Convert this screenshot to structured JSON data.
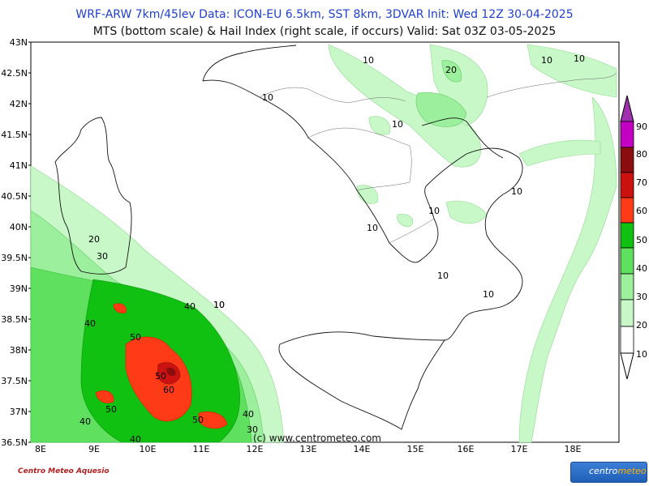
{
  "header": {
    "line1": "WRF-ARW 7km/45lev   Data: ICON-EU 6.5km, SST 8km, 3DVAR    Init: Wed 12Z 30-04-2025",
    "line2": "MTS (bottom scale) & Hail Index (right scale, if occurs) Valid: Sat 03Z 03-05-2025"
  },
  "axes": {
    "lat_labels": [
      "43N",
      "42.5N",
      "42N",
      "41.5N",
      "41N",
      "40.5N",
      "40N",
      "39.5N",
      "39N",
      "38.5N",
      "38N",
      "37.5N",
      "37N",
      "36.5N"
    ],
    "lon_labels": [
      "8E",
      "9E",
      "10E",
      "11E",
      "12E",
      "13E",
      "14E",
      "15E",
      "16E",
      "17E",
      "18E"
    ]
  },
  "contour_labels": [
    "10",
    "10",
    "20",
    "10",
    "10",
    "10",
    "10",
    "10",
    "10",
    "10",
    "10",
    "10",
    "20",
    "30",
    "40",
    "10",
    "40",
    "50",
    "50",
    "60",
    "40",
    "50",
    "40",
    "50",
    "40",
    "30",
    "40"
  ],
  "credit": "(c) www.centrometeo.com",
  "mts_scale": {
    "ticks": [
      "10",
      "20",
      "30",
      "40",
      "50",
      "60",
      "70",
      "80",
      "90"
    ],
    "colors": [
      "#c8f7c8",
      "#9cef9c",
      "#5fe05f",
      "#11c111",
      "#ff3b17",
      "#cc1111",
      "#8b0d0d",
      "#c500c5",
      "#a030b0"
    ]
  },
  "hail_scale": {
    "ticks": [
      "90",
      "80",
      "70",
      "60",
      "50",
      "40",
      "30",
      "20",
      "10"
    ],
    "colors": [
      "#a030b0",
      "#c500c5",
      "#8b0d0d",
      "#cc1111",
      "#ff3b17",
      "#11c111",
      "#5fe05f",
      "#9cef9c",
      "#c8f7c8"
    ]
  },
  "logos": {
    "left": "Centro Meteo Aquesio",
    "right_a": "centro",
    "right_b": "meteo"
  }
}
